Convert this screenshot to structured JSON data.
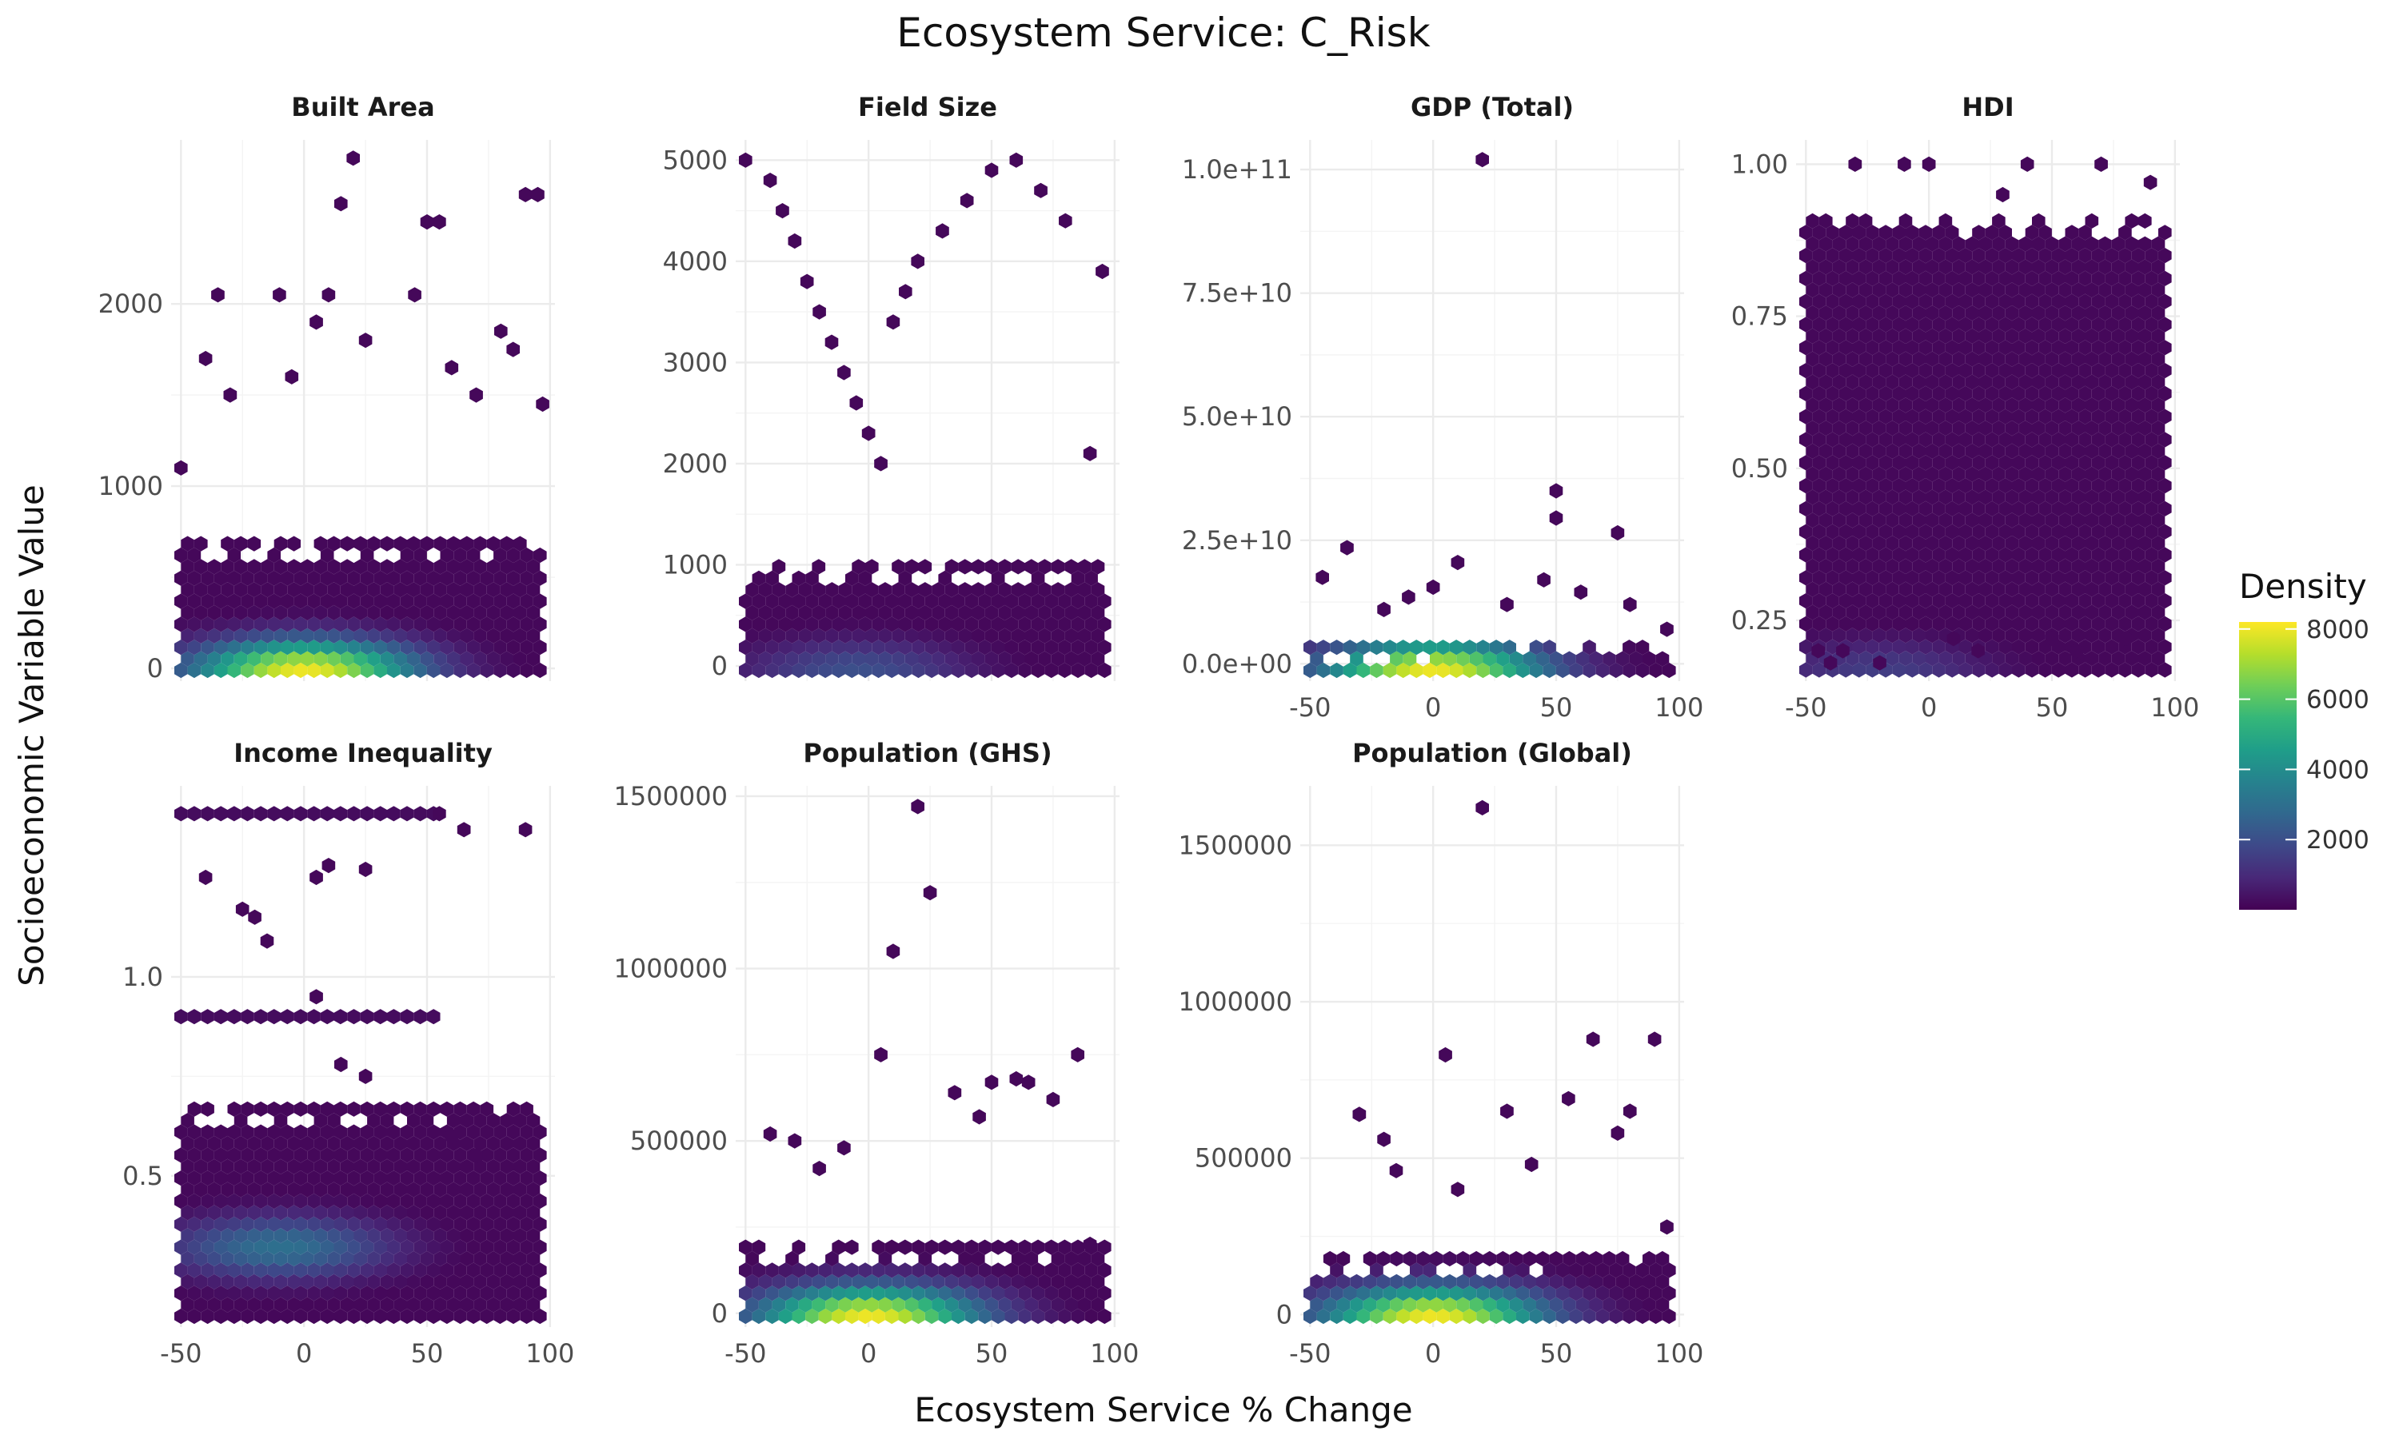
{
  "title": "Ecosystem Service: C_Risk",
  "chart_data": {
    "type": "heatmap",
    "subtype": "hexbin-facets",
    "title": "Ecosystem Service: C_Risk",
    "xlabel": "Ecosystem Service % Change",
    "ylabel": "Socioeconomic Variable Value",
    "grid": true,
    "x_ticks": [
      "-50",
      "0",
      "50",
      "100"
    ],
    "x_tick_values": [
      -50,
      0,
      50,
      100
    ],
    "xlim": [
      -54,
      102
    ],
    "legend": {
      "title": "Density",
      "position": "right",
      "colormap": "viridis",
      "range": [
        1,
        8200
      ],
      "ticks": [
        "2000",
        "4000",
        "6000",
        "8000"
      ],
      "tick_values": [
        2000,
        4000,
        6000,
        8000
      ]
    },
    "facets": [
      {
        "name": "Built Area",
        "ylim": [
          -70,
          2900
        ],
        "y_ticks": [
          "0",
          "1000",
          "2000"
        ],
        "y_tick_values": [
          0,
          1000,
          2000
        ],
        "x_ticks_shown": false,
        "peak_x": 0,
        "peak_density": 8000,
        "body_y_top": 700,
        "outliers": [
          [
            -50,
            1100
          ],
          [
            -40,
            1700
          ],
          [
            -35,
            2050
          ],
          [
            -30,
            1500
          ],
          [
            -10,
            2050
          ],
          [
            -5,
            1600
          ],
          [
            5,
            1900
          ],
          [
            10,
            2050
          ],
          [
            15,
            2550
          ],
          [
            20,
            2800
          ],
          [
            25,
            1800
          ],
          [
            45,
            2050
          ],
          [
            50,
            2450
          ],
          [
            55,
            2450
          ],
          [
            60,
            1650
          ],
          [
            70,
            1500
          ],
          [
            80,
            1850
          ],
          [
            85,
            1750
          ],
          [
            90,
            2600
          ],
          [
            95,
            2600
          ],
          [
            97,
            1450
          ]
        ]
      },
      {
        "name": "Field Size",
        "ylim": [
          -150,
          5200
        ],
        "y_ticks": [
          "0",
          "1000",
          "2000",
          "3000",
          "4000",
          "5000"
        ],
        "y_tick_values": [
          0,
          1000,
          2000,
          3000,
          4000,
          5000
        ],
        "x_ticks_shown": false,
        "peak_x": -5,
        "peak_density": 2000,
        "body_y_top": 1000,
        "outliers": [
          [
            -50,
            5000
          ],
          [
            -40,
            4800
          ],
          [
            -35,
            4500
          ],
          [
            -30,
            4200
          ],
          [
            -25,
            3800
          ],
          [
            -20,
            3500
          ],
          [
            -15,
            3200
          ],
          [
            -10,
            2900
          ],
          [
            -5,
            2600
          ],
          [
            0,
            2300
          ],
          [
            5,
            2000
          ],
          [
            10,
            3400
          ],
          [
            15,
            3700
          ],
          [
            20,
            4000
          ],
          [
            30,
            4300
          ],
          [
            40,
            4600
          ],
          [
            50,
            4900
          ],
          [
            60,
            5000
          ],
          [
            70,
            4700
          ],
          [
            80,
            4400
          ],
          [
            90,
            2100
          ],
          [
            95,
            3900
          ]
        ]
      },
      {
        "name": "GDP (Total)",
        "ylim": [
          -3500000000,
          106000000000
        ],
        "y_ticks": [
          "0.0e+00",
          "2.5e+10",
          "5.0e+10",
          "7.5e+10",
          "1.0e+11"
        ],
        "y_tick_values": [
          0,
          25000000000,
          50000000000,
          75000000000,
          100000000000
        ],
        "x_ticks_shown": true,
        "peak_x": 0,
        "peak_density": 8000,
        "body_y_top": 4000000000,
        "outliers": [
          [
            -45,
            17500000000
          ],
          [
            -35,
            23500000000
          ],
          [
            -20,
            11000000000
          ],
          [
            -10,
            13500000000
          ],
          [
            0,
            15500000000
          ],
          [
            10,
            20500000000
          ],
          [
            20,
            102000000000
          ],
          [
            30,
            12000000000
          ],
          [
            45,
            17000000000
          ],
          [
            50,
            35000000000
          ],
          [
            50,
            29500000000
          ],
          [
            60,
            14500000000
          ],
          [
            75,
            26500000000
          ],
          [
            80,
            12000000000
          ],
          [
            95,
            7000000000
          ]
        ]
      },
      {
        "name": "HDI",
        "ylim": [
          0.15,
          1.04
        ],
        "y_ticks": [
          "0.25",
          "0.50",
          "0.75",
          "1.00"
        ],
        "y_tick_values": [
          0.25,
          0.5,
          0.75,
          1.0
        ],
        "x_ticks_shown": true,
        "peak_x": -20,
        "peak_density": 1500,
        "body_y_top": 0.92,
        "body_y_bottom": 0.28,
        "outliers": [
          [
            -45,
            0.2
          ],
          [
            -40,
            0.18
          ],
          [
            -35,
            0.2
          ],
          [
            -30,
            1.0
          ],
          [
            -20,
            0.18
          ],
          [
            -10,
            1.0
          ],
          [
            0,
            1.0
          ],
          [
            10,
            0.22
          ],
          [
            20,
            0.2
          ],
          [
            30,
            0.95
          ],
          [
            40,
            1.0
          ],
          [
            50,
            0.22
          ],
          [
            60,
            0.2
          ],
          [
            70,
            1.0
          ],
          [
            80,
            0.22
          ],
          [
            90,
            0.97
          ]
        ]
      },
      {
        "name": "Income Inequality",
        "ylim": [
          0.12,
          1.48
        ],
        "y_ticks": [
          "0.5",
          "1.0"
        ],
        "y_tick_values": [
          0.5,
          1.0
        ],
        "x_ticks_shown": true,
        "peak_x": -10,
        "peak_density": 3000,
        "peak_y": 0.32,
        "body_y_top": 0.68,
        "band_y": [
          0.9,
          1.41
        ],
        "outliers": [
          [
            -40,
            1.25
          ],
          [
            -25,
            1.17
          ],
          [
            -20,
            1.15
          ],
          [
            -15,
            1.09
          ],
          [
            5,
            1.25
          ],
          [
            10,
            1.28
          ],
          [
            25,
            1.27
          ],
          [
            55,
            1.41
          ],
          [
            65,
            1.37
          ],
          [
            90,
            1.37
          ],
          [
            5,
            0.95
          ],
          [
            15,
            0.78
          ],
          [
            25,
            0.75
          ],
          [
            60,
            0.6
          ],
          [
            70,
            0.55
          ]
        ]
      },
      {
        "name": "Population (GHS)",
        "ylim": [
          -40000,
          1530000
        ],
        "y_ticks": [
          "0",
          "500000",
          "1000000",
          "1500000"
        ],
        "y_tick_values": [
          0,
          500000,
          1000000,
          1500000
        ],
        "x_ticks_shown": true,
        "peak_x": 0,
        "peak_density": 8000,
        "body_y_top": 200000,
        "outliers": [
          [
            -40,
            520000
          ],
          [
            -30,
            500000
          ],
          [
            -20,
            420000
          ],
          [
            -10,
            480000
          ],
          [
            5,
            750000
          ],
          [
            10,
            1050000
          ],
          [
            20,
            1470000
          ],
          [
            25,
            1220000
          ],
          [
            35,
            640000
          ],
          [
            45,
            570000
          ],
          [
            50,
            670000
          ],
          [
            60,
            680000
          ],
          [
            65,
            670000
          ],
          [
            75,
            620000
          ],
          [
            85,
            750000
          ],
          [
            90,
            200000
          ]
        ]
      },
      {
        "name": "Population (Global)",
        "ylim": [
          -40000,
          1690000
        ],
        "y_ticks": [
          "0",
          "500000",
          "1000000",
          "1500000"
        ],
        "y_tick_values": [
          0,
          500000,
          1000000,
          1500000
        ],
        "x_ticks_shown": true,
        "peak_x": 0,
        "peak_density": 8000,
        "body_y_top": 200000,
        "outliers": [
          [
            -30,
            640000
          ],
          [
            -20,
            560000
          ],
          [
            -15,
            460000
          ],
          [
            5,
            830000
          ],
          [
            10,
            400000
          ],
          [
            20,
            1620000
          ],
          [
            30,
            650000
          ],
          [
            40,
            480000
          ],
          [
            55,
            690000
          ],
          [
            65,
            880000
          ],
          [
            75,
            580000
          ],
          [
            80,
            650000
          ],
          [
            90,
            880000
          ],
          [
            95,
            280000
          ]
        ]
      }
    ]
  }
}
